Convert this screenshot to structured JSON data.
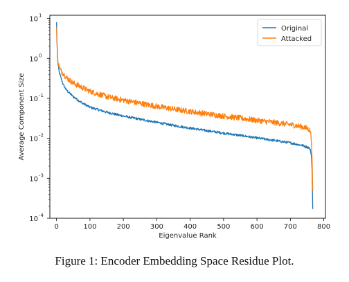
{
  "chart_data": {
    "type": "line",
    "title": "",
    "xlabel": "Eigenvalue Rank",
    "ylabel": "Average Component Size",
    "xlim": [
      -20,
      805
    ],
    "xticks": [
      0,
      100,
      200,
      300,
      400,
      500,
      600,
      700,
      800
    ],
    "yscale": "log",
    "ylim": [
      0.0001,
      12
    ],
    "yticks": [
      {
        "value": 0.0001,
        "base": "10",
        "exp": "-4"
      },
      {
        "value": 0.001,
        "base": "10",
        "exp": "-3"
      },
      {
        "value": 0.01,
        "base": "10",
        "exp": "-2"
      },
      {
        "value": 0.1,
        "base": "10",
        "exp": "-1"
      },
      {
        "value": 1,
        "base": "10",
        "exp": "0"
      },
      {
        "value": 10,
        "base": "10",
        "exp": "1"
      }
    ],
    "legend_position": "top-right",
    "series": [
      {
        "name": "Original",
        "color": "#1f77b4",
        "noise": 0.06,
        "x": [
          0,
          1,
          2,
          3,
          5,
          8,
          12,
          20,
          30,
          50,
          75,
          100,
          150,
          200,
          250,
          300,
          350,
          400,
          450,
          500,
          550,
          600,
          650,
          700,
          720,
          740,
          755,
          760,
          763,
          765,
          767
        ],
        "y": [
          8,
          3,
          1.8,
          1.0,
          0.65,
          0.45,
          0.35,
          0.22,
          0.16,
          0.11,
          0.078,
          0.06,
          0.045,
          0.036,
          0.03,
          0.025,
          0.021,
          0.018,
          0.0155,
          0.0135,
          0.0118,
          0.0102,
          0.0089,
          0.0077,
          0.0071,
          0.0065,
          0.0058,
          0.0052,
          0.0035,
          0.0015,
          0.00017
        ]
      },
      {
        "name": "Attacked",
        "color": "#ff7f0e",
        "noise": 0.14,
        "x": [
          0,
          1,
          2,
          3,
          5,
          8,
          12,
          20,
          30,
          50,
          75,
          100,
          150,
          200,
          250,
          300,
          350,
          400,
          450,
          500,
          550,
          600,
          650,
          700,
          720,
          740,
          755,
          760,
          763,
          765,
          767
        ],
        "y": [
          6,
          3.5,
          2.0,
          1.2,
          0.75,
          0.62,
          0.5,
          0.42,
          0.33,
          0.24,
          0.19,
          0.15,
          0.11,
          0.09,
          0.075,
          0.063,
          0.054,
          0.047,
          0.041,
          0.036,
          0.032,
          0.028,
          0.025,
          0.022,
          0.0205,
          0.019,
          0.017,
          0.015,
          0.009,
          0.003,
          0.0005
        ]
      }
    ]
  },
  "caption": "Figure 1: Encoder Embedding Space Residue Plot."
}
